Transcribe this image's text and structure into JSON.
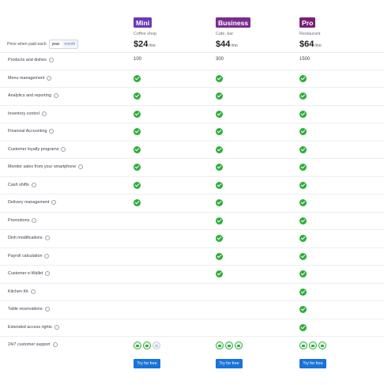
{
  "period": {
    "label": "Price when paid each",
    "options": [
      "year",
      "month"
    ],
    "selected": "year"
  },
  "plans": [
    {
      "name": "Mini",
      "color": "#6a3bb0",
      "subtitle": "Coffee shop",
      "price": "$24",
      "per": "/mo",
      "cta": "Try for free"
    },
    {
      "name": "Business",
      "color": "#7a2d8f",
      "subtitle": "Cafe, bar",
      "price": "$44",
      "per": "/mo",
      "cta": "Try for free"
    },
    {
      "name": "Pro",
      "color": "#7a2277",
      "subtitle": "Restaurant",
      "price": "$64",
      "per": "/mo",
      "cta": "Try for free"
    }
  ],
  "features": [
    {
      "label": "Products and dishes",
      "values": [
        "100",
        "300",
        "1500"
      ]
    },
    {
      "label": "Menu management",
      "values": [
        true,
        true,
        true
      ]
    },
    {
      "label": "Analytics and reporting",
      "values": [
        true,
        true,
        true
      ]
    },
    {
      "label": "Inventory control",
      "values": [
        true,
        true,
        true
      ]
    },
    {
      "label": "Financial Accounting",
      "values": [
        true,
        true,
        true
      ]
    },
    {
      "label": "Customer loyalty programs",
      "values": [
        true,
        true,
        true
      ]
    },
    {
      "label": "Monitor sales from your smartphone",
      "values": [
        true,
        true,
        true
      ]
    },
    {
      "label": "Cash shifts",
      "values": [
        true,
        true,
        true
      ]
    },
    {
      "label": "Delivery management",
      "values": [
        true,
        true,
        true
      ]
    },
    {
      "label": "Promotions",
      "values": [
        false,
        true,
        true
      ]
    },
    {
      "label": "Dish modifications",
      "values": [
        false,
        true,
        true
      ]
    },
    {
      "label": "Payroll calculation",
      "values": [
        false,
        true,
        true
      ]
    },
    {
      "label": "Customer e-Wallet",
      "values": [
        false,
        true,
        true
      ]
    },
    {
      "label": "Kitchen Kit",
      "values": [
        false,
        false,
        true
      ]
    },
    {
      "label": "Table reservations",
      "values": [
        false,
        false,
        true
      ]
    },
    {
      "label": "Extended access rights",
      "values": [
        false,
        false,
        true
      ]
    }
  ],
  "support": {
    "label": "24/7 customer support",
    "icons": [
      "chat-icon",
      "message-icon",
      "phone-icon"
    ],
    "availability": [
      [
        true,
        true,
        false
      ],
      [
        true,
        true,
        true
      ],
      [
        true,
        true,
        true
      ]
    ]
  }
}
